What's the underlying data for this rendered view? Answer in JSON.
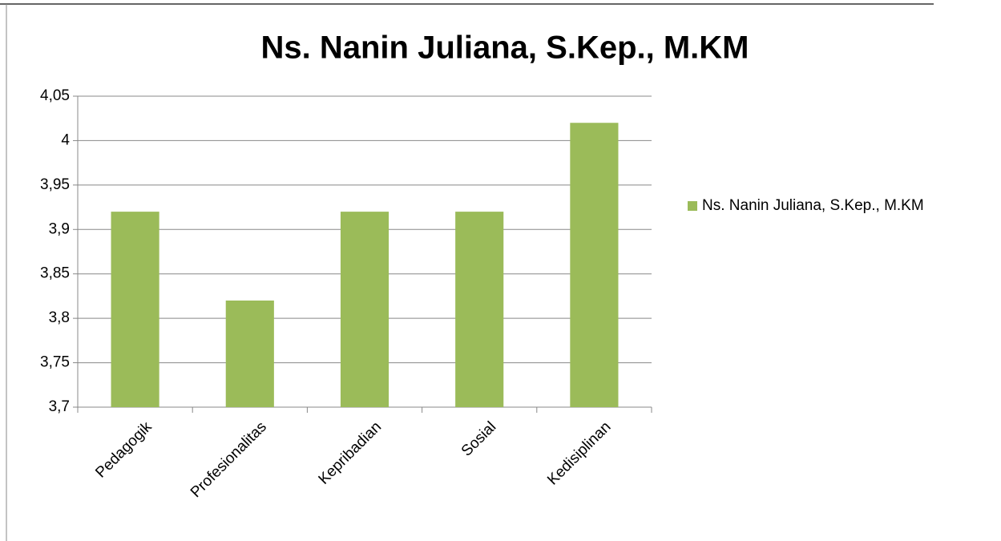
{
  "chart_data": {
    "type": "bar",
    "title": "Ns. Nanin Juliana, S.Kep., M.KM",
    "categories": [
      "Pedagogik",
      "Profesionalitas",
      "Kepribadian",
      "Sosial",
      "Kedisiplinan"
    ],
    "series": [
      {
        "name": "Ns. Nanin Juliana, S.Kep., M.KM",
        "color": "#9bbb59",
        "values": [
          3.92,
          3.82,
          3.92,
          3.92,
          4.02
        ]
      }
    ],
    "ylim": [
      3.7,
      4.05
    ],
    "yticks": [
      {
        "value": 3.7,
        "label": "3,7"
      },
      {
        "value": 3.75,
        "label": "3,75"
      },
      {
        "value": 3.8,
        "label": "3,8"
      },
      {
        "value": 3.85,
        "label": "3,85"
      },
      {
        "value": 3.9,
        "label": "3,9"
      },
      {
        "value": 3.95,
        "label": "3,95"
      },
      4,
      {
        "value": 4.05,
        "label": "4,05"
      }
    ],
    "grid": true,
    "legend": "right"
  }
}
